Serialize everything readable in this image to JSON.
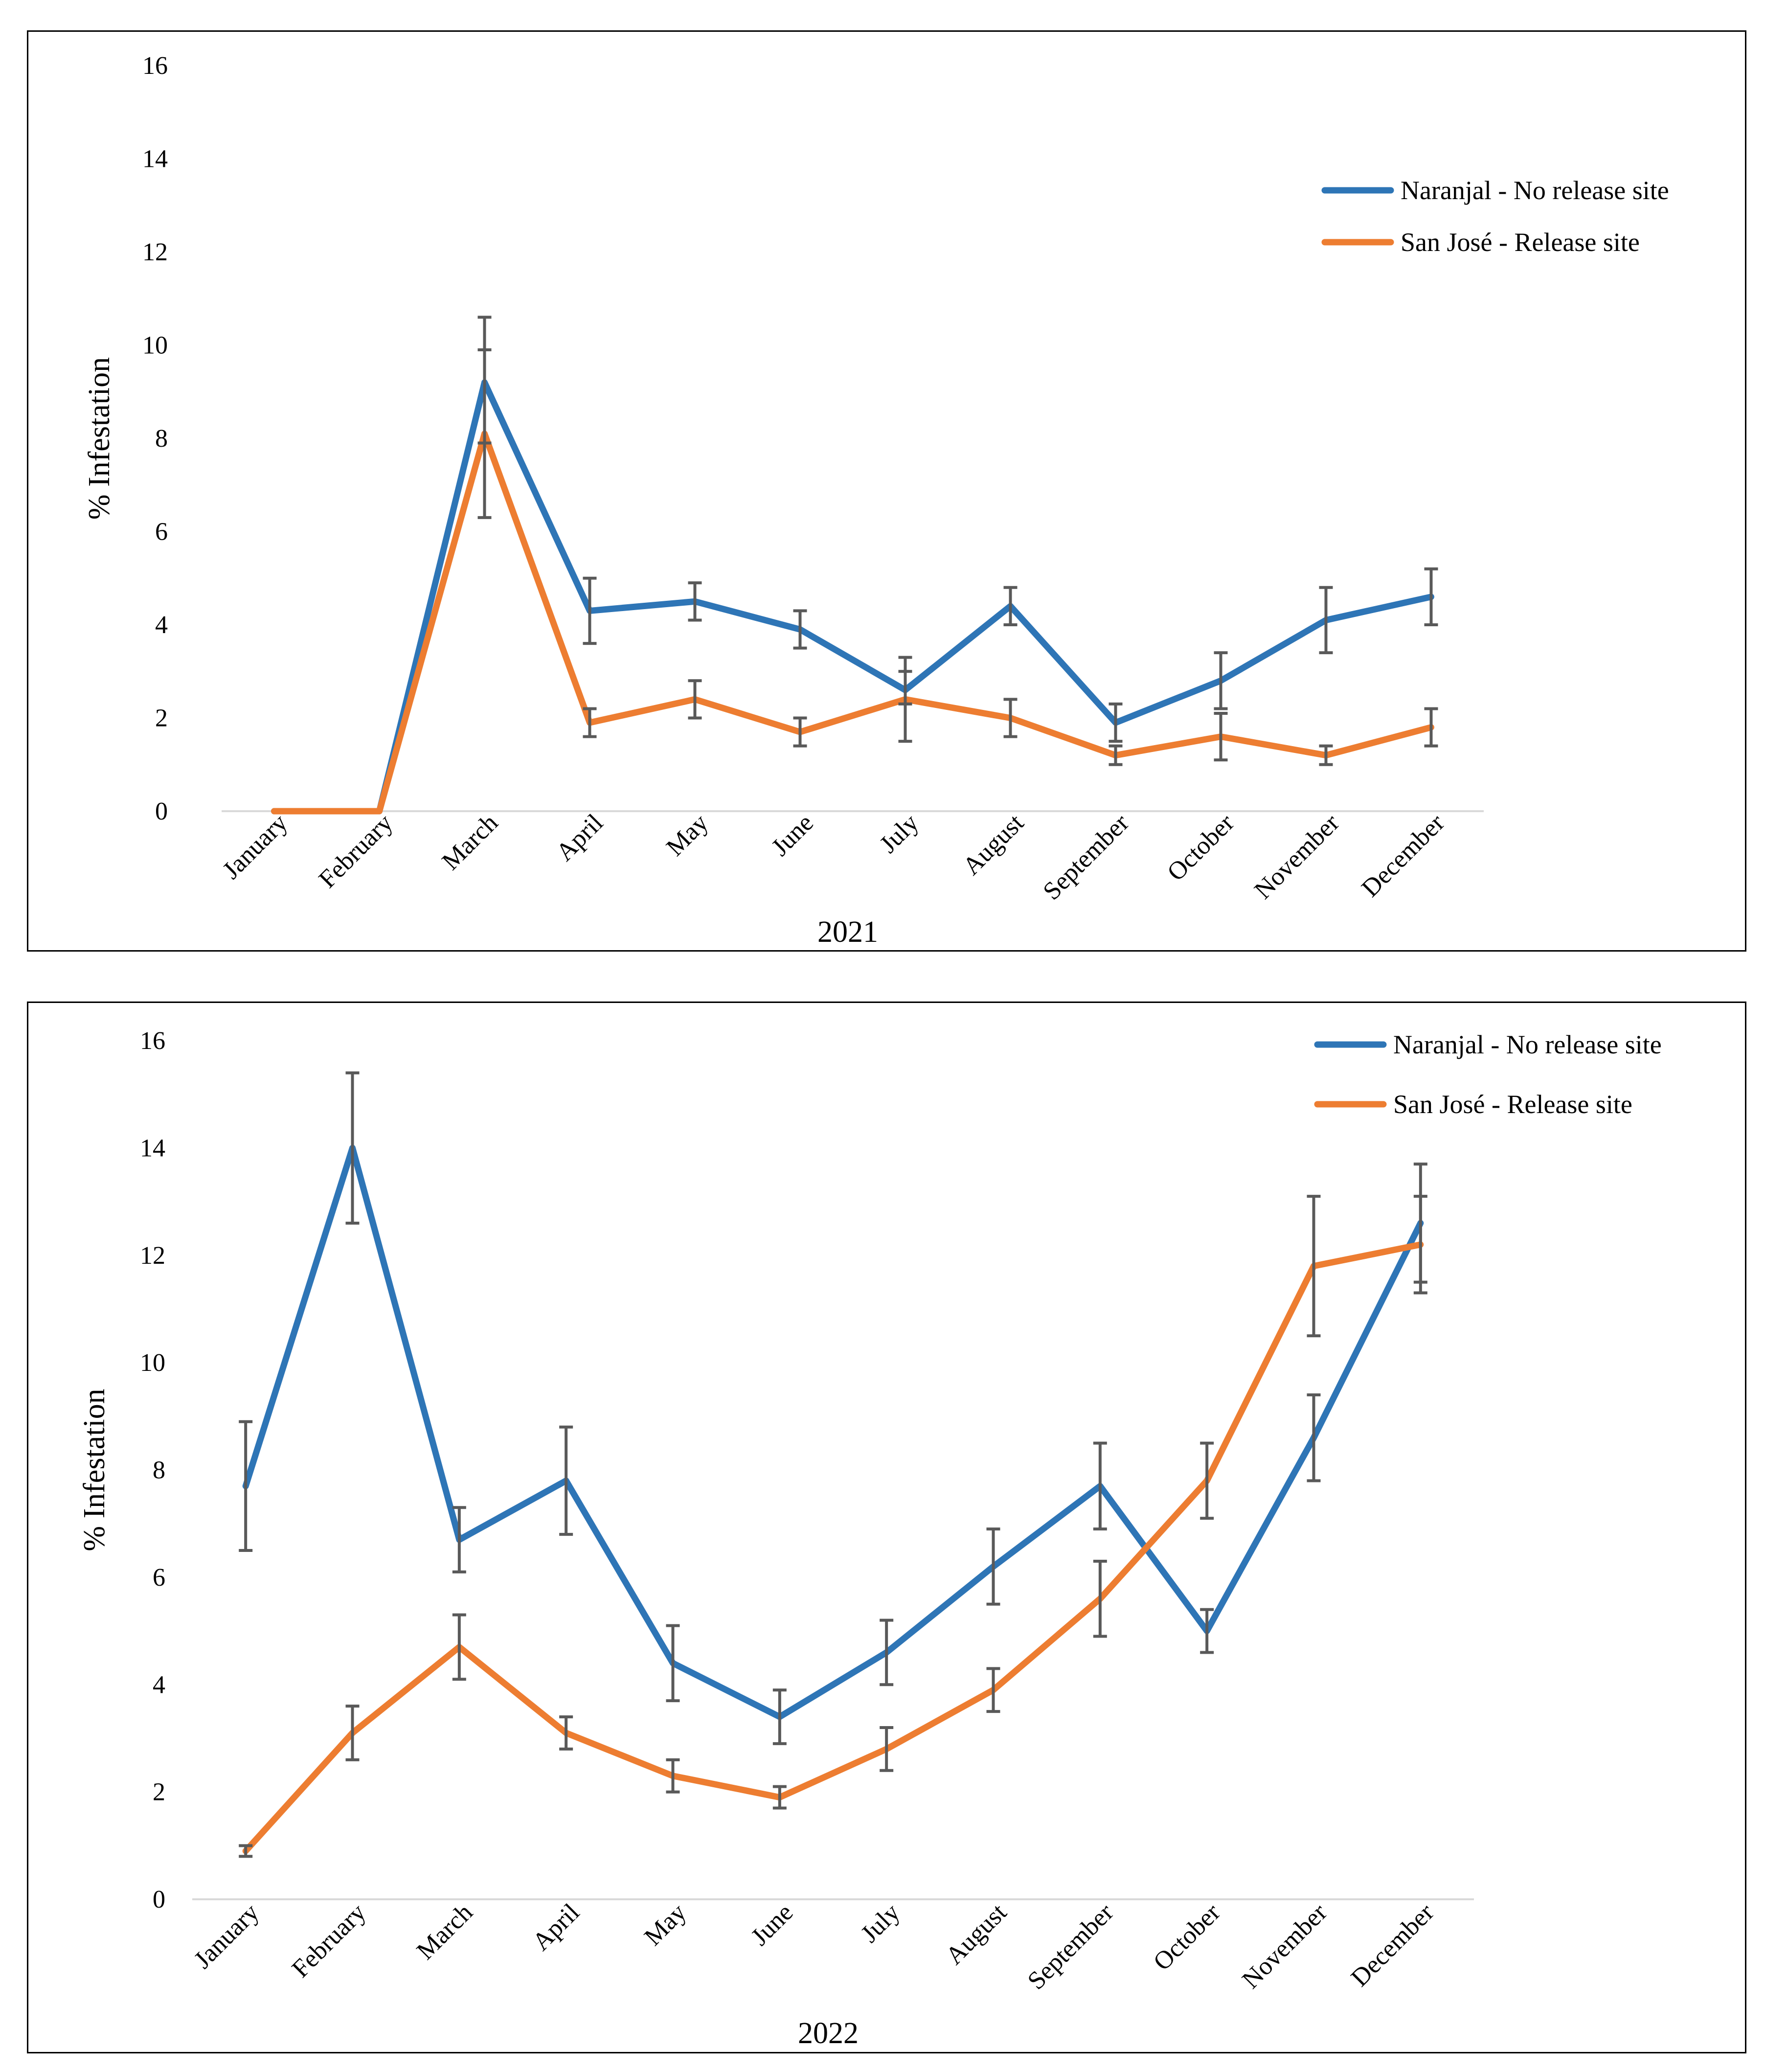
{
  "chart_data": [
    {
      "type": "line",
      "title": "",
      "xlabel": "2021",
      "ylabel": "% Infestation",
      "ylim": [
        0,
        16
      ],
      "yticks": [
        "0",
        "2",
        "4",
        "6",
        "8",
        "10",
        "12",
        "14",
        "16"
      ],
      "categories": [
        "January",
        "February",
        "March",
        "April",
        "May",
        "June",
        "July",
        "August",
        "September",
        "October",
        "November",
        "December"
      ],
      "legend_position": "top-right",
      "grid": false,
      "series": [
        {
          "name": "Naranjal - No release site",
          "color": "#2E75B6",
          "values": [
            0,
            0,
            9.2,
            4.3,
            4.5,
            3.9,
            2.6,
            4.4,
            1.9,
            2.8,
            4.1,
            4.6
          ],
          "error_low": [
            null,
            null,
            7.9,
            3.6,
            4.1,
            3.5,
            2.3,
            4.0,
            1.5,
            2.2,
            3.4,
            4.0
          ],
          "error_high": [
            null,
            null,
            10.6,
            5.0,
            4.9,
            4.3,
            3.3,
            4.8,
            2.3,
            3.4,
            4.8,
            5.2
          ]
        },
        {
          "name": "San José - Release site",
          "color": "#ED7D31",
          "values": [
            0,
            0,
            8.1,
            1.9,
            2.4,
            1.7,
            2.4,
            2.0,
            1.2,
            1.6,
            1.2,
            1.8
          ],
          "error_low": [
            null,
            null,
            6.3,
            1.6,
            2.0,
            1.4,
            1.5,
            1.6,
            1.0,
            1.1,
            1.0,
            1.4
          ],
          "error_high": [
            null,
            null,
            9.9,
            2.2,
            2.8,
            2.0,
            3.0,
            2.4,
            1.4,
            2.1,
            1.4,
            2.2
          ]
        }
      ]
    },
    {
      "type": "line",
      "title": "",
      "xlabel": "2022",
      "ylabel": "% Infestation",
      "ylim": [
        0,
        16
      ],
      "yticks": [
        "0",
        "2",
        "4",
        "6",
        "8",
        "10",
        "12",
        "14",
        "16"
      ],
      "categories": [
        "January",
        "February",
        "March",
        "April",
        "May",
        "June",
        "July",
        "August",
        "September",
        "October",
        "November",
        "December"
      ],
      "legend_position": "top-right",
      "grid": false,
      "series": [
        {
          "name": "Naranjal - No release site",
          "color": "#2E75B6",
          "values": [
            7.7,
            14.0,
            6.7,
            7.8,
            4.4,
            3.4,
            4.6,
            6.2,
            7.7,
            5.0,
            8.6,
            12.6
          ],
          "error_low": [
            6.5,
            12.6,
            6.1,
            6.8,
            3.7,
            2.9,
            4.0,
            5.5,
            6.9,
            4.6,
            7.8,
            11.5
          ],
          "error_high": [
            8.9,
            15.4,
            7.3,
            8.8,
            5.1,
            3.9,
            5.2,
            6.9,
            8.5,
            5.4,
            9.4,
            13.7
          ]
        },
        {
          "name": "San José - Release site",
          "color": "#ED7D31",
          "values": [
            0.9,
            3.1,
            4.7,
            3.1,
            2.3,
            1.9,
            2.8,
            3.9,
            5.6,
            7.8,
            11.8,
            12.2
          ],
          "error_low": [
            0.8,
            2.6,
            4.1,
            2.8,
            2.0,
            1.7,
            2.4,
            3.5,
            4.9,
            7.1,
            10.5,
            11.3
          ],
          "error_high": [
            1.0,
            3.6,
            5.3,
            3.4,
            2.6,
            2.1,
            3.2,
            4.3,
            6.3,
            8.5,
            13.1,
            13.1
          ]
        }
      ]
    }
  ]
}
